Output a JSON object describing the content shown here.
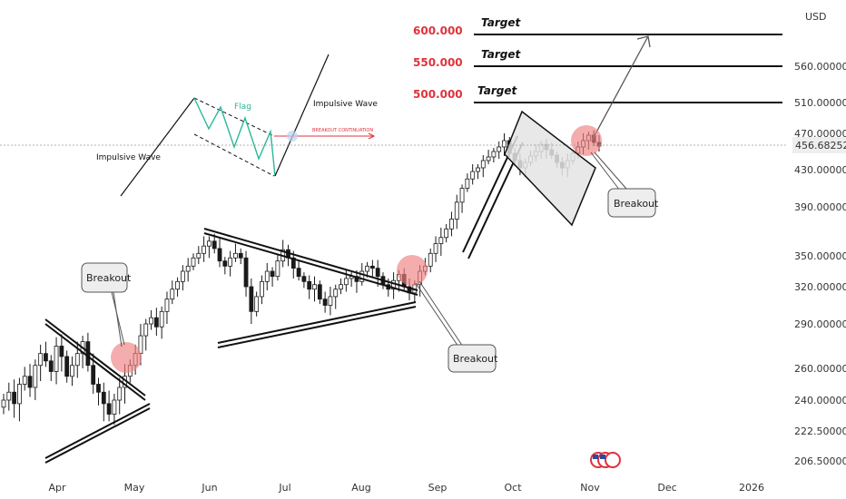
{
  "chart_data": {
    "type": "candlestick",
    "currency": "USD",
    "last_price": "456.68252",
    "y_ticks": [
      "560.00000",
      "510.00000",
      "470.00000",
      "430.00000",
      "390.00000",
      "350.00000",
      "320.00000",
      "290.00000",
      "260.00000",
      "240.00000",
      "222.50000",
      "206.50000"
    ],
    "x_ticks": [
      "Apr",
      "May",
      "Jun",
      "Jul",
      "Aug",
      "Sep",
      "Oct",
      "Nov",
      "Dec",
      "2026"
    ],
    "target_levels": [
      {
        "value": "600.000",
        "label": "Target"
      },
      {
        "value": "550.000",
        "label": "Target"
      },
      {
        "value": "500.000",
        "label": "Target"
      }
    ],
    "callouts": [
      "Breakout",
      "Breakout",
      "Breakout"
    ],
    "inset_diagram": {
      "labels": [
        "Impulsive Wave",
        "Flag",
        "Impulsive Wave",
        "BREAKOUT CONTINUATION"
      ]
    },
    "closes": [
      240,
      245,
      238,
      250,
      255,
      248,
      262,
      270,
      265,
      258,
      275,
      268,
      255,
      262,
      270,
      278,
      262,
      250,
      245,
      238,
      232,
      240,
      248,
      255,
      262,
      270,
      282,
      290,
      295,
      288,
      300,
      310,
      318,
      325,
      335,
      340,
      348,
      352,
      358,
      362,
      356,
      345,
      340,
      348,
      352,
      348,
      320,
      300,
      312,
      325,
      335,
      330,
      345,
      355,
      348,
      338,
      330,
      325,
      318,
      322,
      310,
      305,
      312,
      318,
      322,
      328,
      330,
      325,
      335,
      340,
      338,
      330,
      322,
      318,
      326,
      332,
      320,
      315,
      322,
      335,
      340,
      352,
      360,
      365,
      372,
      380,
      395,
      410,
      420,
      428,
      432,
      440,
      444,
      450,
      455,
      462,
      448,
      440,
      432,
      438,
      445,
      450,
      458,
      452,
      446,
      438,
      432,
      440,
      448,
      455,
      462,
      468,
      460,
      456
    ]
  }
}
